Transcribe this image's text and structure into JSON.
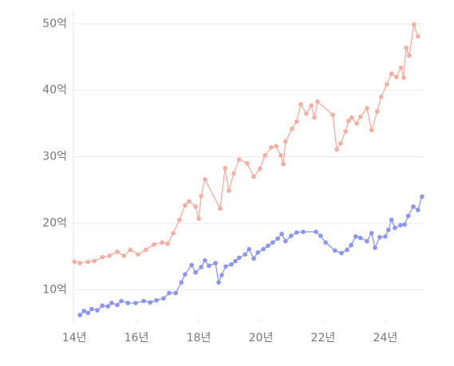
{
  "chart_data": {
    "type": "line",
    "xlim": [
      13.97,
      25.26
    ],
    "ylim": [
      5.6,
      51.9
    ],
    "xticks": [
      {
        "value": 14,
        "label": "14년"
      },
      {
        "value": 16,
        "label": "16년"
      },
      {
        "value": 18,
        "label": "18년"
      },
      {
        "value": 20,
        "label": "20년"
      },
      {
        "value": 22,
        "label": "22년"
      },
      {
        "value": 24,
        "label": "24년"
      }
    ],
    "yticks": [
      {
        "value": 10,
        "label": "10억"
      },
      {
        "value": 20,
        "label": "20억"
      },
      {
        "value": 30,
        "label": "30억"
      },
      {
        "value": 40,
        "label": "40억"
      },
      {
        "value": 50,
        "label": "50억"
      }
    ],
    "grid": true,
    "series": [
      {
        "color": "#f7ad9f",
        "x": [
          14.0,
          14.18,
          14.44,
          14.64,
          14.9,
          15.13,
          15.38,
          15.59,
          15.8,
          16.05,
          16.3,
          16.56,
          16.82,
          17.0,
          17.18,
          17.38,
          17.56,
          17.69,
          17.9,
          18.0,
          18.08,
          18.2,
          18.69,
          18.85,
          18.97,
          19.13,
          19.3,
          19.56,
          19.77,
          19.97,
          20.13,
          20.33,
          20.49,
          20.64,
          20.72,
          20.79,
          21.0,
          21.15,
          21.28,
          21.46,
          21.62,
          21.72,
          21.82,
          22.31,
          22.44,
          22.56,
          22.72,
          22.82,
          22.92,
          23.08,
          23.2,
          23.41,
          23.56,
          23.74,
          23.87,
          24.05,
          24.2,
          24.36,
          24.51,
          24.59,
          24.67,
          24.77,
          24.92,
          25.05
        ],
        "values": [
          14.2,
          14.0,
          14.2,
          14.3,
          14.9,
          15.1,
          15.7,
          15.1,
          16.0,
          15.3,
          16.0,
          16.8,
          17.1,
          16.9,
          18.5,
          20.5,
          22.7,
          23.3,
          22.5,
          20.7,
          24.1,
          26.6,
          22.2,
          28.3,
          24.9,
          27.5,
          29.6,
          29.0,
          27.0,
          28.2,
          30.2,
          31.4,
          31.6,
          30.2,
          28.9,
          32.3,
          34.2,
          35.3,
          37.9,
          36.5,
          37.7,
          35.9,
          38.3,
          36.3,
          31.1,
          32.0,
          33.8,
          35.4,
          35.9,
          35.0,
          36.0,
          37.3,
          34.0,
          36.8,
          39.0,
          40.9,
          42.5,
          42.0,
          43.4,
          41.9,
          46.4,
          45.2,
          49.9,
          48.1
        ]
      },
      {
        "color": "#8c96ef",
        "x": [
          14.18,
          14.31,
          14.44,
          14.56,
          14.74,
          14.9,
          15.08,
          15.2,
          15.38,
          15.51,
          15.72,
          15.97,
          16.23,
          16.44,
          16.64,
          16.87,
          17.05,
          17.26,
          17.44,
          17.56,
          17.77,
          17.9,
          18.08,
          18.2,
          18.33,
          18.54,
          18.64,
          18.74,
          18.87,
          19.05,
          19.18,
          19.3,
          19.49,
          19.62,
          19.77,
          19.9,
          20.08,
          20.23,
          20.38,
          20.54,
          20.67,
          20.79,
          20.97,
          21.15,
          21.36,
          21.77,
          21.92,
          22.08,
          22.38,
          22.59,
          22.77,
          22.9,
          23.05,
          23.2,
          23.41,
          23.56,
          23.67,
          23.82,
          24.0,
          24.1,
          24.2,
          24.31,
          24.49,
          24.62,
          24.74,
          24.9,
          25.05,
          25.18
        ],
        "values": [
          6.2,
          6.8,
          6.5,
          7.1,
          6.9,
          7.6,
          7.5,
          8.0,
          7.7,
          8.3,
          8.0,
          8.0,
          8.3,
          8.1,
          8.4,
          8.7,
          9.5,
          9.5,
          11.1,
          12.3,
          13.7,
          12.6,
          13.4,
          14.4,
          13.6,
          14.0,
          11.1,
          12.2,
          13.5,
          13.8,
          14.3,
          14.8,
          15.3,
          16.1,
          14.7,
          15.6,
          16.1,
          16.6,
          17.1,
          17.7,
          18.4,
          17.3,
          18.1,
          18.6,
          18.7,
          18.7,
          18.1,
          17.1,
          15.9,
          15.5,
          16.0,
          16.7,
          18.0,
          17.8,
          17.3,
          18.5,
          16.3,
          17.9,
          18.0,
          19.0,
          20.5,
          19.3,
          19.7,
          19.8,
          21.1,
          22.5,
          22.0,
          24.0
        ]
      }
    ]
  }
}
